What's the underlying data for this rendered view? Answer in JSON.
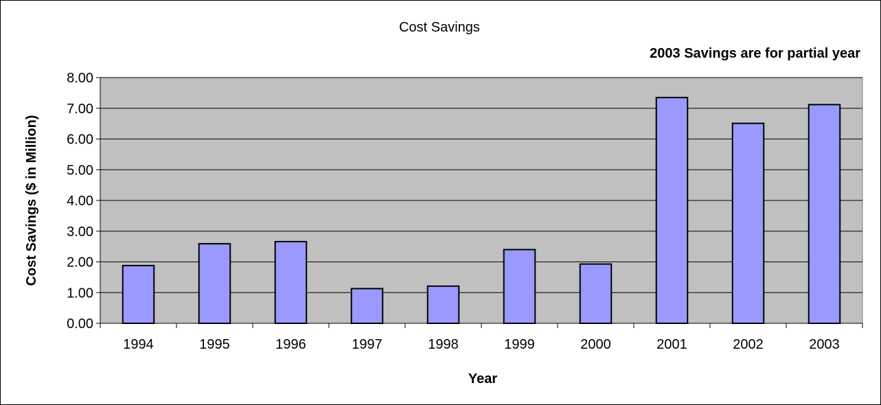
{
  "chart_data": {
    "type": "bar",
    "title": "Cost Savings",
    "annotation": "2003 Savings are for partial year",
    "xlabel": "Year",
    "ylabel": "Cost Savings ($ in Million)",
    "categories": [
      "1994",
      "1995",
      "1996",
      "1997",
      "1998",
      "1999",
      "2000",
      "2001",
      "2002",
      "2003"
    ],
    "values": [
      1.88,
      2.59,
      2.66,
      1.13,
      1.21,
      2.4,
      1.93,
      7.35,
      6.51,
      7.12
    ],
    "ylim": [
      0,
      8
    ],
    "yticks": [
      0,
      1,
      2,
      3,
      4,
      5,
      6,
      7,
      8
    ],
    "ytick_labels": [
      "0.00",
      "1.00",
      "2.00",
      "3.00",
      "4.00",
      "5.00",
      "6.00",
      "7.00",
      "8.00"
    ],
    "grid": true,
    "legend": "none",
    "colors": {
      "bar_fill": "#9999FF",
      "bar_stroke": "#000000",
      "plot_background": "#C0C0C0",
      "gridline": "#000000"
    }
  }
}
